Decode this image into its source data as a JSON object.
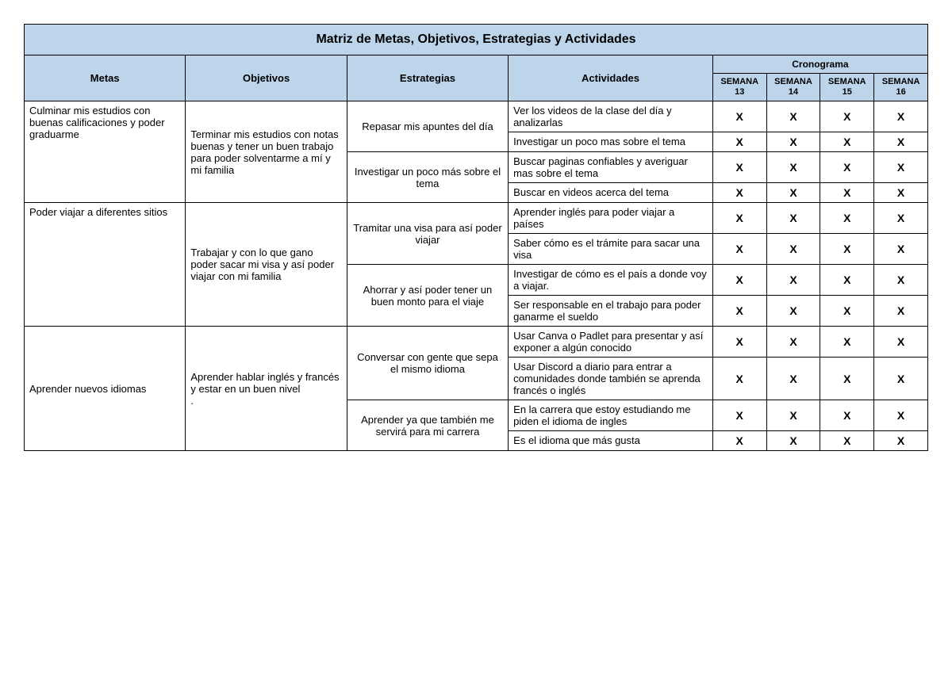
{
  "title": "Matriz de Metas, Objetivos, Estrategias y Actividades",
  "headers": {
    "metas": "Metas",
    "objetivos": "Objetivos",
    "estrategias": "Estrategias",
    "actividades": "Actividades",
    "cronograma": "Cronograma",
    "sem13": "SEMANA 13",
    "sem14": "SEMANA 14",
    "sem15": "SEMANA 15",
    "sem16": "SEMANA 16"
  },
  "mark": "X",
  "rows": [
    {
      "meta": "Culminar mis estudios con buenas calificaciones y poder graduarme",
      "objetivo": "Terminar mis estudios con notas buenas y tener un buen trabajo para poder solventarme a mí y mi familia",
      "estrategias": [
        {
          "text": "Repasar mis apuntes del día",
          "actividades": [
            {
              "text": "Ver los videos de la clase del día y analizarlas",
              "s": [
                true,
                true,
                true,
                true
              ]
            },
            {
              "text": "Investigar un poco mas sobre el tema",
              "s": [
                true,
                true,
                true,
                true
              ]
            }
          ]
        },
        {
          "text": "Investigar un poco más sobre el tema",
          "actividades": [
            {
              "text": "Buscar paginas confiables y averiguar mas sobre el tema",
              "s": [
                true,
                true,
                true,
                true
              ]
            },
            {
              "text": "Buscar en videos acerca del tema",
              "s": [
                true,
                true,
                true,
                true
              ]
            }
          ]
        }
      ]
    },
    {
      "meta": "Poder viajar a diferentes sitios",
      "objetivo": "Trabajar y con lo que gano poder sacar mi visa y así poder viajar con mi familia",
      "estrategias": [
        {
          "text": "Tramitar una visa para así poder viajar",
          "actividades": [
            {
              "text": "Aprender inglés para poder viajar a países",
              "s": [
                true,
                true,
                true,
                true
              ]
            },
            {
              "text": "Saber cómo es el trámite para sacar una visa",
              "s": [
                true,
                true,
                true,
                true
              ]
            }
          ]
        },
        {
          "text": "Ahorrar y así poder tener un buen monto para el viaje",
          "actividades": [
            {
              "text": "Investigar de cómo es el país a donde voy a viajar.",
              "s": [
                true,
                true,
                true,
                true
              ]
            },
            {
              "text": "Ser responsable en el trabajo para poder ganarme el sueldo",
              "s": [
                true,
                true,
                true,
                true
              ]
            }
          ]
        }
      ]
    },
    {
      "meta": "Aprender nuevos idiomas",
      "objetivo": "Aprender hablar inglés y francés y estar en un buen nivel\n.",
      "estrategias": [
        {
          "text": "Conversar con gente que sepa el mismo idioma",
          "actividades": [
            {
              "text": "Usar Canva o Padlet para presentar y así exponer a algún conocido",
              "s": [
                true,
                true,
                true,
                true
              ]
            },
            {
              "text": "Usar Discord a diario para entrar a comunidades donde también se aprenda francés o inglés",
              "s": [
                true,
                true,
                true,
                true
              ]
            }
          ]
        },
        {
          "text": "Aprender ya que también me servirá para mi carrera",
          "actividades": [
            {
              "text": "En la carrera que estoy estudiando me piden el idioma de ingles",
              "s": [
                true,
                true,
                true,
                true
              ]
            },
            {
              "text": "Es el idioma que más gusta",
              "s": [
                true,
                true,
                true,
                true
              ]
            }
          ]
        }
      ]
    }
  ]
}
